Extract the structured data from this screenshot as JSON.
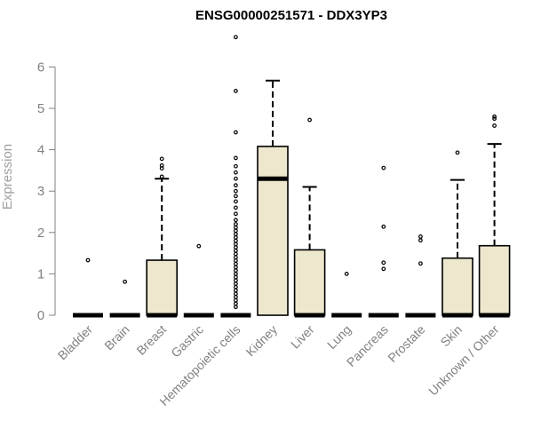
{
  "chart_data": {
    "type": "box",
    "title": "ENSG00000251571 - DDX3YP3",
    "xlabel": "",
    "ylabel": "Expression",
    "ylim": [
      0,
      6.9
    ],
    "yticks": [
      "0",
      "1",
      "2",
      "3",
      "4",
      "5",
      "6"
    ],
    "box_fill": "#ede7ce",
    "categories": [
      "Bladder",
      "Brain",
      "Breast",
      "Gastric",
      "Hematopoietic cells",
      "Kidney",
      "Liver",
      "Lung",
      "Pancreas",
      "Prostate",
      "Skin",
      "Unknown / Other"
    ],
    "boxes": [
      {
        "q1": 0,
        "median": 0,
        "q3": 0,
        "whisker_low": 0,
        "whisker_high": 0,
        "outliers": [
          1.33
        ]
      },
      {
        "q1": 0,
        "median": 0,
        "q3": 0,
        "whisker_low": 0,
        "whisker_high": 0,
        "outliers": [
          0.81
        ]
      },
      {
        "q1": 0,
        "median": 0,
        "q3": 1.33,
        "whisker_low": 0,
        "whisker_high": 3.3,
        "outliers": [
          3.35,
          3.55,
          3.62,
          3.78
        ]
      },
      {
        "q1": 0,
        "median": 0,
        "q3": 0,
        "whisker_low": 0,
        "whisker_high": 0,
        "outliers": [
          1.67
        ]
      },
      {
        "q1": 0,
        "median": 0,
        "q3": 0,
        "whisker_low": 0,
        "whisker_high": 0,
        "outliers": [
          0.2,
          0.28,
          0.36,
          0.44,
          0.52,
          0.6,
          0.68,
          0.76,
          0.84,
          0.92,
          1.0,
          1.08,
          1.16,
          1.24,
          1.32,
          1.4,
          1.48,
          1.56,
          1.64,
          1.72,
          1.8,
          1.88,
          1.96,
          2.04,
          2.12,
          2.2,
          2.3,
          2.45,
          2.6,
          2.75,
          2.88,
          3.0,
          3.14,
          3.3,
          3.45,
          3.6,
          3.8,
          4.42,
          5.42,
          6.72
        ]
      },
      {
        "q1": 0,
        "median": 3.3,
        "q3": 4.08,
        "whisker_low": 0,
        "whisker_high": 5.67,
        "outliers": []
      },
      {
        "q1": 0,
        "median": 0,
        "q3": 1.58,
        "whisker_low": 0,
        "whisker_high": 3.1,
        "outliers": [
          4.72
        ]
      },
      {
        "q1": 0,
        "median": 0,
        "q3": 0,
        "whisker_low": 0,
        "whisker_high": 0,
        "outliers": [
          1.0
        ]
      },
      {
        "q1": 0,
        "median": 0,
        "q3": 0,
        "whisker_low": 0,
        "whisker_high": 0,
        "outliers": [
          1.12,
          1.27,
          2.14,
          3.56
        ]
      },
      {
        "q1": 0,
        "median": 0,
        "q3": 0,
        "whisker_low": 0,
        "whisker_high": 0,
        "outliers": [
          1.25,
          1.81,
          1.9
        ]
      },
      {
        "q1": 0,
        "median": 0,
        "q3": 1.38,
        "whisker_low": 0,
        "whisker_high": 3.27,
        "outliers": [
          3.93
        ]
      },
      {
        "q1": 0,
        "median": 0,
        "q3": 1.68,
        "whisker_low": 0,
        "whisker_high": 4.14,
        "outliers": [
          4.58,
          4.75,
          4.8
        ]
      }
    ]
  }
}
